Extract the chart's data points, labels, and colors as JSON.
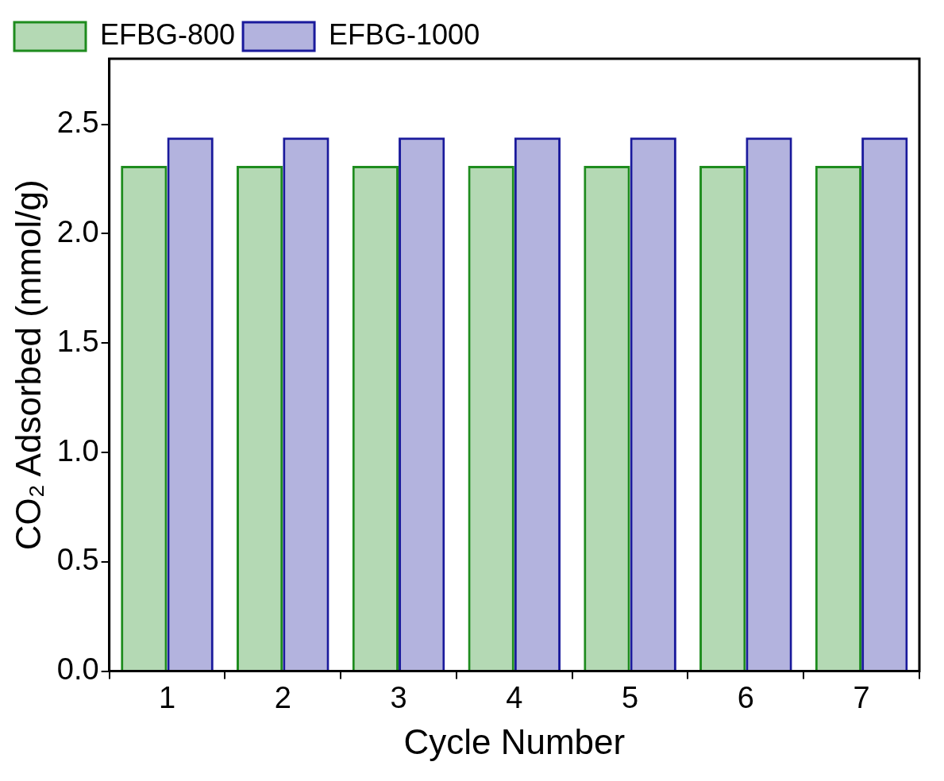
{
  "chart_data": {
    "type": "bar",
    "xlabel": "Cycle Number",
    "ylabel": "CO₂ Adsorbed (mmol/g)",
    "categories": [
      "1",
      "2",
      "3",
      "4",
      "5",
      "6",
      "7"
    ],
    "series": [
      {
        "name": "EFBG-800",
        "color": "#1e8c1e",
        "values": [
          2.31,
          2.31,
          2.31,
          2.31,
          2.31,
          2.31,
          2.31
        ]
      },
      {
        "name": "EFBG-1000",
        "color": "#1a1a9c",
        "values": [
          2.44,
          2.44,
          2.44,
          2.44,
          2.44,
          2.44,
          2.44
        ]
      }
    ],
    "ylim": [
      0,
      2.8
    ],
    "yticks": [
      {
        "value": 0,
        "label": "0.0"
      },
      {
        "value": 0.5,
        "label": "0.5"
      },
      {
        "value": 1,
        "label": "1.0"
      },
      {
        "value": 1.5,
        "label": "1.5"
      },
      {
        "value": 2,
        "label": "2.0"
      },
      {
        "value": 2.5,
        "label": "2.5"
      }
    ],
    "grid": false,
    "legend": "top left"
  }
}
